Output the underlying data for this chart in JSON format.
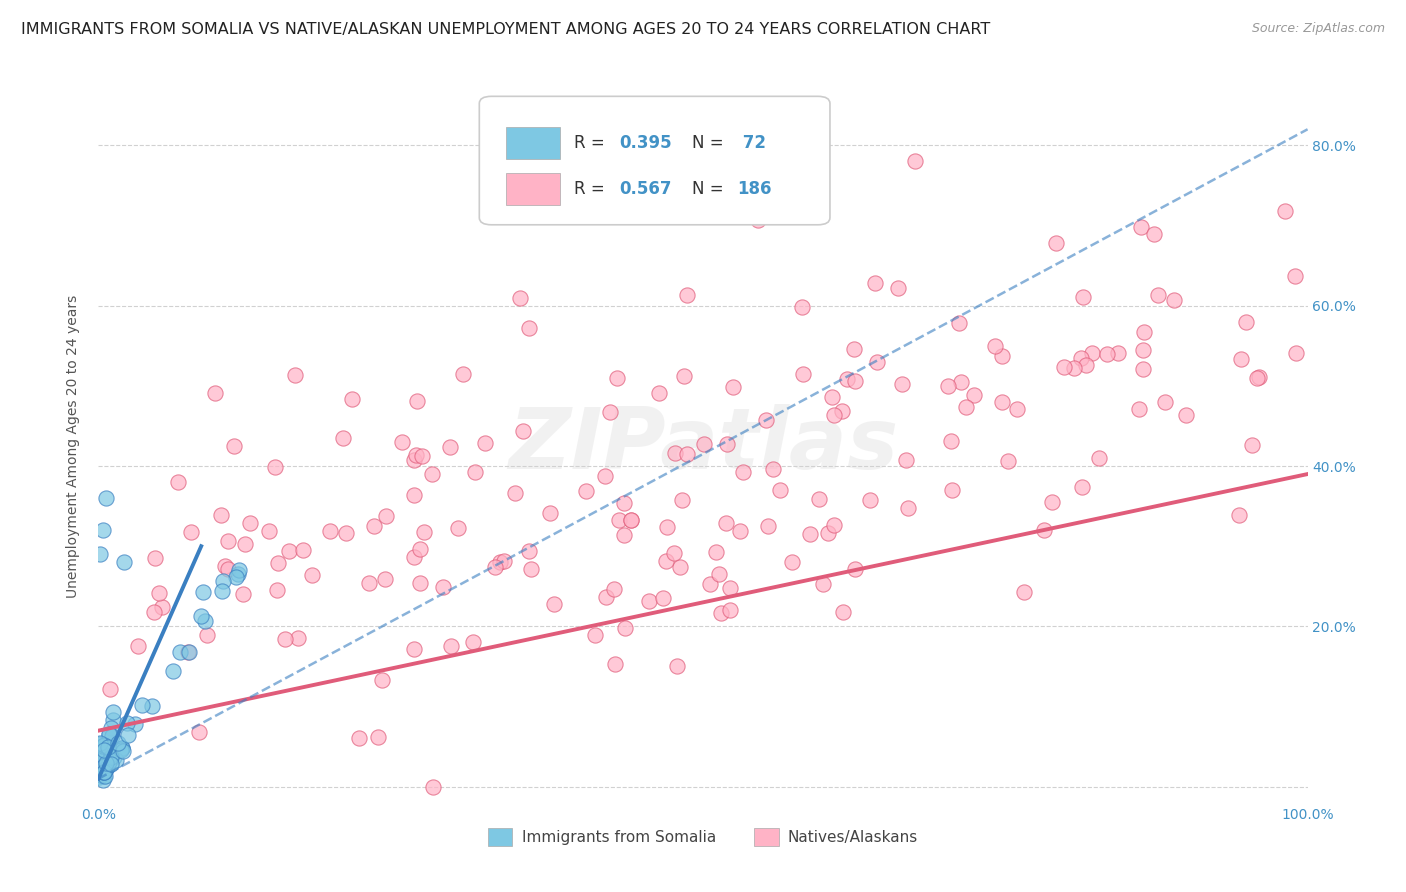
{
  "title": "IMMIGRANTS FROM SOMALIA VS NATIVE/ALASKAN UNEMPLOYMENT AMONG AGES 20 TO 24 YEARS CORRELATION CHART",
  "source": "Source: ZipAtlas.com",
  "ylabel": "Unemployment Among Ages 20 to 24 years",
  "xlim": [
    0,
    1.0
  ],
  "ylim": [
    -0.02,
    0.87
  ],
  "xtick_positions": [
    0.0,
    1.0
  ],
  "xticklabels": [
    "0.0%",
    "100.0%"
  ],
  "ytick_positions": [
    0.0,
    0.2,
    0.4,
    0.6,
    0.8
  ],
  "yticklabels": [
    "",
    "20.0%",
    "40.0%",
    "60.0%",
    "80.0%"
  ],
  "color_blue": "#7ec8e3",
  "color_pink": "#ffb3c6",
  "color_blue_line": "#3a7fc1",
  "color_pink_line": "#e05c7a",
  "color_blue_text": "#4292c6",
  "watermark_text": "ZIPatlas",
  "legend_label1": "Immigrants from Somalia",
  "legend_label2": "Natives/Alaskans",
  "grid_color": "#cccccc",
  "background_color": "#ffffff",
  "title_fontsize": 11.5,
  "axis_label_fontsize": 10,
  "tick_fontsize": 10,
  "right_tick_color": "#5b9bd5"
}
